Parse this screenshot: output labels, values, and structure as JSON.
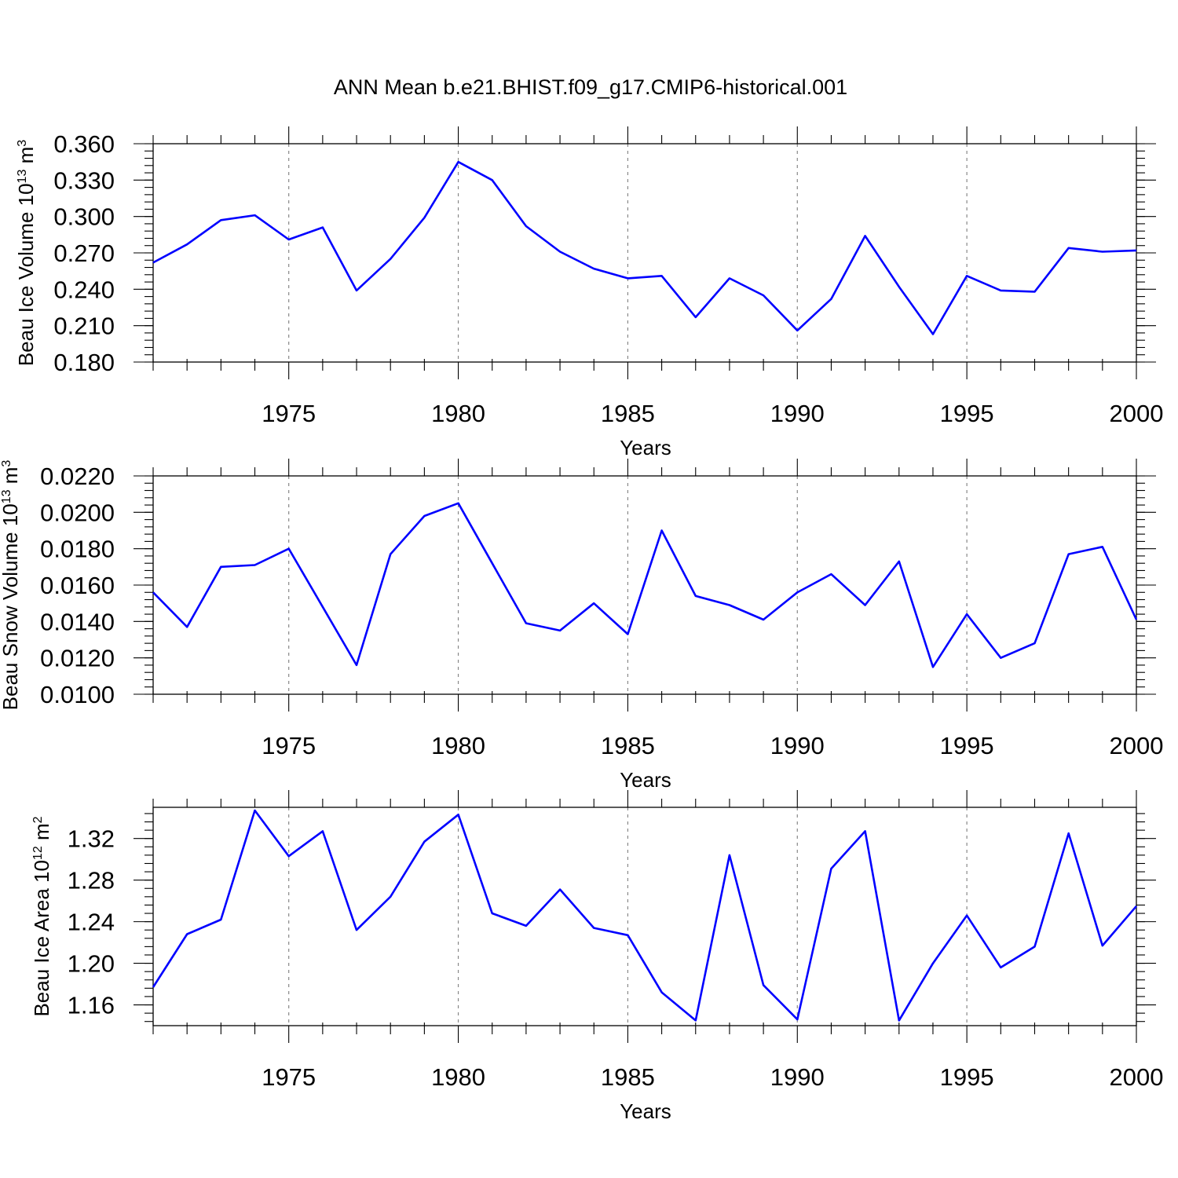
{
  "page": {
    "title": "ANN Mean b.e21.BHIST.f09_g17.CMIP6-historical.001"
  },
  "colors": {
    "series": "#0000ff",
    "axes": "#000000",
    "grid": "#888888",
    "background": "#ffffff"
  },
  "chart_data": [
    {
      "type": "line",
      "title": "ANN Mean b.e21.BHIST.f09_g17.CMIP6-historical.001",
      "ylabel": {
        "main": "Beau Ice Volume 10",
        "sup": "13",
        "unit": " m",
        "unit_sup": "3"
      },
      "xlabel": "Years",
      "xlim": [
        1971,
        2000
      ],
      "ylim": [
        0.18,
        0.36
      ],
      "yticks": [
        0.18,
        0.21,
        0.24,
        0.27,
        0.3,
        0.33,
        0.36
      ],
      "ytick_labels": [
        "0.180",
        "0.210",
        "0.240",
        "0.270",
        "0.300",
        "0.330",
        "0.360"
      ],
      "xticks": [
        1975,
        1980,
        1985,
        1990,
        1995,
        2000
      ],
      "xtick_labels": [
        "1975",
        "1980",
        "1985",
        "1990",
        "1995",
        "2000"
      ],
      "grid": "vertical dashed at major x ticks",
      "series": [
        {
          "name": "Beau Ice Volume",
          "x": [
            1971,
            1972,
            1973,
            1974,
            1975,
            1976,
            1977,
            1978,
            1979,
            1980,
            1981,
            1982,
            1983,
            1984,
            1985,
            1986,
            1987,
            1988,
            1989,
            1990,
            1991,
            1992,
            1993,
            1994,
            1995,
            1996,
            1997,
            1998,
            1999,
            2000
          ],
          "values": [
            0.262,
            0.277,
            0.297,
            0.301,
            0.281,
            0.291,
            0.239,
            0.265,
            0.299,
            0.345,
            0.33,
            0.292,
            0.271,
            0.257,
            0.249,
            0.251,
            0.217,
            0.249,
            0.235,
            0.206,
            0.232,
            0.284,
            0.242,
            0.203,
            0.251,
            0.239,
            0.238,
            0.274,
            0.271,
            0.272
          ]
        }
      ]
    },
    {
      "type": "line",
      "ylabel": {
        "main": "Beau Snow Volume 10",
        "sup": "13",
        "unit": " m",
        "unit_sup": "3"
      },
      "xlabel": "Years",
      "xlim": [
        1971,
        2000
      ],
      "ylim": [
        0.01,
        0.022
      ],
      "yticks": [
        0.01,
        0.012,
        0.014,
        0.016,
        0.018,
        0.02,
        0.022
      ],
      "ytick_labels": [
        "0.0100",
        "0.0120",
        "0.0140",
        "0.0160",
        "0.0180",
        "0.0200",
        "0.0220"
      ],
      "xticks": [
        1975,
        1980,
        1985,
        1990,
        1995,
        2000
      ],
      "xtick_labels": [
        "1975",
        "1980",
        "1985",
        "1990",
        "1995",
        "2000"
      ],
      "grid": "vertical dashed at major x ticks",
      "series": [
        {
          "name": "Beau Snow Volume",
          "x": [
            1971,
            1972,
            1973,
            1974,
            1975,
            1976,
            1977,
            1978,
            1979,
            1980,
            1981,
            1982,
            1983,
            1984,
            1985,
            1986,
            1987,
            1988,
            1989,
            1990,
            1991,
            1992,
            1993,
            1994,
            1995,
            1996,
            1997,
            1998,
            1999,
            2000
          ],
          "values": [
            0.0156,
            0.0137,
            0.017,
            0.0171,
            0.018,
            0.0148,
            0.0116,
            0.0177,
            0.0198,
            0.0205,
            0.0172,
            0.0139,
            0.0135,
            0.015,
            0.0133,
            0.019,
            0.0154,
            0.0149,
            0.0141,
            0.0156,
            0.0166,
            0.0149,
            0.0173,
            0.0115,
            0.0144,
            0.012,
            0.0128,
            0.0177,
            0.0181,
            0.0141
          ]
        }
      ]
    },
    {
      "type": "line",
      "ylabel": {
        "main": "Beau Ice Area 10",
        "sup": "12",
        "unit": " m",
        "unit_sup": "2"
      },
      "xlabel": "Years",
      "xlim": [
        1971,
        2000
      ],
      "ylim": [
        1.14,
        1.35
      ],
      "yticks": [
        1.16,
        1.2,
        1.24,
        1.28,
        1.32
      ],
      "ytick_labels": [
        "1.16",
        "1.20",
        "1.24",
        "1.28",
        "1.32"
      ],
      "xticks": [
        1975,
        1980,
        1985,
        1990,
        1995,
        2000
      ],
      "xtick_labels": [
        "1975",
        "1980",
        "1985",
        "1990",
        "1995",
        "2000"
      ],
      "grid": "vertical dashed at major x ticks",
      "series": [
        {
          "name": "Beau Ice Area",
          "x": [
            1971,
            1972,
            1973,
            1974,
            1975,
            1976,
            1977,
            1978,
            1979,
            1980,
            1981,
            1982,
            1983,
            1984,
            1985,
            1986,
            1987,
            1988,
            1989,
            1990,
            1991,
            1992,
            1993,
            1994,
            1995,
            1996,
            1997,
            1998,
            1999,
            2000
          ],
          "values": [
            1.177,
            1.228,
            1.242,
            1.347,
            1.303,
            1.327,
            1.232,
            1.264,
            1.317,
            1.343,
            1.248,
            1.236,
            1.271,
            1.234,
            1.227,
            1.172,
            1.145,
            1.304,
            1.179,
            1.146,
            1.291,
            1.327,
            1.145,
            1.2,
            1.246,
            1.196,
            1.216,
            1.325,
            1.217,
            1.255
          ]
        }
      ]
    }
  ]
}
